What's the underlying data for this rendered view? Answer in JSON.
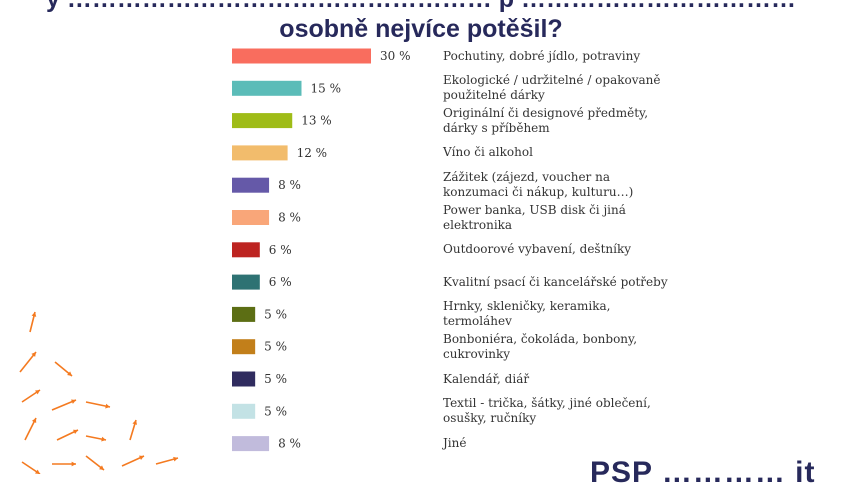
{
  "title": {
    "line1": "y …………………………………………… p ……………………………",
    "line2": "osobně nejvíce potěšil?"
  },
  "brand": {
    "text": "PSP ………… it"
  },
  "colors": {
    "title": "#27295b",
    "text": "#333333",
    "accent_arrows": "#f47a20"
  },
  "chart_data": {
    "type": "bar",
    "orientation": "horizontal",
    "unit": "%",
    "xlim": [
      0,
      30
    ],
    "grid": false,
    "legend": "none",
    "categories": [
      "Pochutiny, dobré jídlo, potraviny",
      "Ekologické / udržitelné / opakovaně použitelné dárky",
      "Originální či designové předměty, dárky s příběhem",
      "Víno či alkohol",
      "Zážitek (zájezd, voucher na konzumaci či nákup, kulturu…)",
      "Power banka, USB disk či jiná elektronika",
      "Outdoorové vybavení, deštníky",
      "Kvalitní psací či kancelářské potřeby",
      "Hrnky, skleničky, keramika, termoláhev",
      "Bonboniéra, čokoláda, bonbony, cukrovinky",
      "Kalendář, diář",
      "Textil - trička, šátky, jiné oblečení, osušky, ručníky",
      "Jiné"
    ],
    "labels": [
      "30 %",
      "15 %",
      "13 %",
      "12 %",
      "8 %",
      "8 %",
      "6 %",
      "6 %",
      "5 %",
      "5 %",
      "5 %",
      "5 %",
      "8 %"
    ],
    "values": [
      30,
      15,
      13,
      12,
      8,
      8,
      6,
      6,
      5,
      5,
      5,
      5,
      8
    ],
    "bar_colors": [
      "#f96d5e",
      "#5bbcb8",
      "#9fbc17",
      "#f2bc6c",
      "#6559a8",
      "#f9a679",
      "#bd2421",
      "#2e7273",
      "#5c6e14",
      "#c27f1a",
      "#302c5f",
      "#c3e2e5",
      "#c1bbdc"
    ]
  }
}
